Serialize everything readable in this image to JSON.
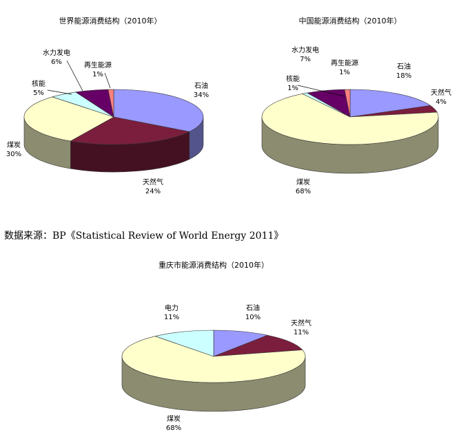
{
  "source_note": "数据来源：BP《Statistical Review of World Energy 2011》",
  "chart_data": [
    {
      "type": "pie",
      "title": "世界能源消费结构（2010年）",
      "categories": [
        "石油",
        "天然气",
        "煤炭",
        "核能",
        "水力发电",
        "再生能源"
      ],
      "values": [
        34,
        24,
        30,
        5,
        6,
        1
      ],
      "labels": [
        "34%",
        "24%",
        "30%",
        "5%",
        "6%",
        "1%"
      ],
      "colors": [
        "#9999ff",
        "#7b1e3d",
        "#ffffcc",
        "#ccffff",
        "#660066",
        "#ff8080"
      ],
      "three_d": true
    },
    {
      "type": "pie",
      "title": "中国能源消费结构（2010年）",
      "categories": [
        "石油",
        "天然气",
        "煤炭",
        "核能",
        "水力发电",
        "再生能源"
      ],
      "values": [
        18,
        4,
        68,
        1,
        7,
        1
      ],
      "labels": [
        "18%",
        "4%",
        "68%",
        "1%",
        "7%",
        "1%"
      ],
      "colors": [
        "#9999ff",
        "#7b1e3d",
        "#ffffcc",
        "#ccffff",
        "#660066",
        "#ff8080"
      ],
      "three_d": true
    },
    {
      "type": "pie",
      "title": "重庆市能源消费结构（2010年）",
      "categories": [
        "石油",
        "天然气",
        "煤炭",
        "电力"
      ],
      "values": [
        10,
        11,
        68,
        11
      ],
      "labels": [
        "10%",
        "11%",
        "68%",
        "11%"
      ],
      "colors": [
        "#9999ff",
        "#7b1e3d",
        "#ffffcc",
        "#ccffff"
      ],
      "three_d": true
    }
  ]
}
